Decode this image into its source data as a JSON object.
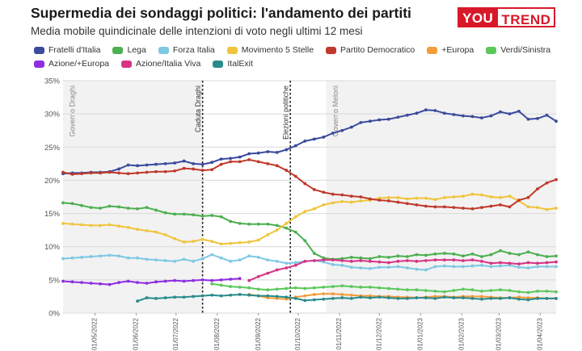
{
  "header": {
    "title": "Supermedia dei sondaggi politici: l'andamento dei partiti",
    "subtitle": "Media mobile quindicinale delle intenzioni di voto negli ultimi 12 mesi"
  },
  "logo": {
    "part1": "YOU",
    "part2": "TREND"
  },
  "chart_data": {
    "type": "line",
    "title": "Supermedia dei sondaggi politici: l'andamento dei partiti",
    "subtitle": "Media mobile quindicinale delle intenzioni di voto negli ultimi 12 mesi",
    "ylim": [
      0,
      35
    ],
    "y_ticks": [
      0,
      5,
      10,
      15,
      20,
      25,
      30,
      35
    ],
    "y_tick_labels": [
      "0%",
      "5%",
      "10%",
      "15%",
      "20%",
      "25%",
      "30%",
      "35%"
    ],
    "x_tick_labels": [
      "01/05/2022",
      "01/06/2022",
      "01/07/2022",
      "01/08/2022",
      "01/09/2022",
      "01/10/2022",
      "01/11/2022",
      "01/12/2022",
      "01/01/2023",
      "01/02/2023",
      "01/03/2023",
      "01/04/2023"
    ],
    "x": [
      "2022-04-07",
      "2022-04-14",
      "2022-04-21",
      "2022-04-28",
      "2022-05-05",
      "2022-05-12",
      "2022-05-19",
      "2022-05-26",
      "2022-06-02",
      "2022-06-09",
      "2022-06-16",
      "2022-06-23",
      "2022-06-30",
      "2022-07-07",
      "2022-07-14",
      "2022-07-21",
      "2022-07-28",
      "2022-08-04",
      "2022-08-11",
      "2022-08-18",
      "2022-08-25",
      "2022-09-01",
      "2022-09-08",
      "2022-09-15",
      "2022-09-22",
      "2022-09-29",
      "2022-10-06",
      "2022-10-13",
      "2022-10-20",
      "2022-10-27",
      "2022-11-03",
      "2022-11-10",
      "2022-11-17",
      "2022-11-24",
      "2022-12-01",
      "2022-12-08",
      "2022-12-15",
      "2022-12-22",
      "2022-12-29",
      "2023-01-05",
      "2023-01-12",
      "2023-01-19",
      "2023-01-26",
      "2023-02-02",
      "2023-02-09",
      "2023-02-16",
      "2023-02-23",
      "2023-03-02",
      "2023-03-09",
      "2023-03-16",
      "2023-03-23",
      "2023-03-30",
      "2023-04-06",
      "2023-04-13"
    ],
    "series": [
      {
        "name": "Fratelli d'Italia",
        "color": "#3a4a9c",
        "values": [
          21.0,
          21.1,
          21.1,
          21.2,
          21.2,
          21.3,
          21.7,
          22.3,
          22.2,
          22.3,
          22.4,
          22.5,
          22.6,
          22.9,
          22.5,
          22.4,
          22.7,
          23.2,
          23.3,
          23.5,
          24.0,
          24.1,
          24.3,
          24.2,
          24.6,
          25.2,
          25.9,
          26.2,
          26.5,
          27.1,
          27.5,
          28.0,
          28.7,
          28.9,
          29.1,
          29.2,
          29.5,
          29.8,
          30.1,
          30.6,
          30.5,
          30.1,
          29.9,
          29.7,
          29.6,
          29.4,
          29.7,
          30.3,
          30.0,
          30.4,
          29.2,
          29.3,
          29.8,
          28.9
        ]
      },
      {
        "name": "Lega",
        "color": "#4caf50",
        "values": [
          16.6,
          16.5,
          16.2,
          15.9,
          15.8,
          16.1,
          16.0,
          15.8,
          15.7,
          15.9,
          15.5,
          15.1,
          14.9,
          14.9,
          14.8,
          14.6,
          14.7,
          14.5,
          13.8,
          13.5,
          13.4,
          13.4,
          13.4,
          13.2,
          12.8,
          12.2,
          10.9,
          9.0,
          8.3,
          8.1,
          8.2,
          8.4,
          8.3,
          8.2,
          8.5,
          8.4,
          8.6,
          8.5,
          8.8,
          8.7,
          8.9,
          9.0,
          8.9,
          8.6,
          8.9,
          8.5,
          8.8,
          9.4,
          9.0,
          8.8,
          9.2,
          8.8,
          8.5,
          8.6
        ]
      },
      {
        "name": "Forza Italia",
        "color": "#7ec8e3",
        "values": [
          8.2,
          8.3,
          8.4,
          8.5,
          8.6,
          8.7,
          8.6,
          8.3,
          8.3,
          8.1,
          8.0,
          7.9,
          7.8,
          8.1,
          7.8,
          8.2,
          8.8,
          8.3,
          7.8,
          8.0,
          8.6,
          8.4,
          8.0,
          7.8,
          7.5,
          7.6,
          7.8,
          7.9,
          7.7,
          7.3,
          7.2,
          6.9,
          6.8,
          6.7,
          6.9,
          6.9,
          7.0,
          6.8,
          6.6,
          6.5,
          7.0,
          7.1,
          7.0,
          7.0,
          7.1,
          7.2,
          7.0,
          7.1,
          7.2,
          6.9,
          6.8,
          7.0,
          7.0,
          7.0
        ]
      },
      {
        "name": "Movimento 5 Stelle",
        "color": "#f0c43c",
        "values": [
          13.5,
          13.4,
          13.3,
          13.2,
          13.2,
          13.3,
          13.1,
          12.9,
          12.6,
          12.4,
          12.2,
          11.8,
          11.2,
          10.7,
          10.8,
          11.1,
          10.8,
          10.4,
          10.5,
          10.6,
          10.7,
          11.0,
          11.8,
          12.5,
          13.5,
          14.5,
          15.3,
          15.7,
          16.3,
          16.6,
          16.8,
          16.7,
          16.9,
          17.0,
          17.3,
          17.4,
          17.4,
          17.2,
          17.3,
          17.3,
          17.1,
          17.4,
          17.5,
          17.6,
          17.9,
          17.8,
          17.5,
          17.4,
          17.6,
          16.9,
          16.0,
          15.9,
          15.6,
          15.8
        ]
      },
      {
        "name": "Partito Democratico",
        "color": "#c0392b",
        "values": [
          21.2,
          20.9,
          21.0,
          21.1,
          21.1,
          21.2,
          21.1,
          21.0,
          21.1,
          21.2,
          21.3,
          21.3,
          21.4,
          21.8,
          21.7,
          21.5,
          21.6,
          22.4,
          22.8,
          22.8,
          23.1,
          22.8,
          22.5,
          22.2,
          21.5,
          20.6,
          19.5,
          18.6,
          18.2,
          17.9,
          17.8,
          17.6,
          17.5,
          17.2,
          17.0,
          16.9,
          16.7,
          16.5,
          16.3,
          16.1,
          16.0,
          16.0,
          15.9,
          15.8,
          15.7,
          15.9,
          16.1,
          16.3,
          16.0,
          17.0,
          17.4,
          18.7,
          19.6,
          20.1
        ]
      },
      {
        "name": "+Europa",
        "color": "#f39c3c",
        "values": [
          null,
          null,
          null,
          null,
          null,
          null,
          null,
          null,
          null,
          null,
          null,
          null,
          null,
          null,
          null,
          null,
          null,
          null,
          null,
          null,
          2.8,
          2.6,
          2.3,
          2.2,
          2.1,
          2.4,
          2.6,
          2.8,
          2.9,
          2.9,
          2.8,
          2.7,
          2.6,
          2.6,
          2.5,
          2.5,
          2.4,
          2.4,
          2.3,
          2.4,
          2.5,
          2.5,
          2.4,
          2.5,
          2.5,
          2.5,
          2.4,
          2.3,
          2.3,
          2.4,
          2.3,
          2.3,
          2.2,
          2.2
        ]
      },
      {
        "name": "Verdi/Sinistra",
        "color": "#5cc85c",
        "values": [
          null,
          null,
          null,
          null,
          null,
          null,
          null,
          null,
          null,
          null,
          null,
          null,
          null,
          null,
          null,
          null,
          4.4,
          4.2,
          4.0,
          3.9,
          3.8,
          3.6,
          3.5,
          3.6,
          3.7,
          3.8,
          3.7,
          3.8,
          3.9,
          4.0,
          4.1,
          4.0,
          3.9,
          3.9,
          3.8,
          3.7,
          3.6,
          3.5,
          3.5,
          3.4,
          3.3,
          3.2,
          3.4,
          3.6,
          3.5,
          3.3,
          3.4,
          3.5,
          3.4,
          3.2,
          3.1,
          3.3,
          3.3,
          3.2
        ]
      },
      {
        "name": "Azione/+Europa",
        "color": "#8e2de2",
        "values": [
          4.8,
          4.7,
          4.6,
          4.5,
          4.4,
          4.3,
          4.6,
          4.8,
          4.6,
          4.5,
          4.7,
          4.8,
          4.9,
          4.8,
          4.9,
          5.0,
          4.9,
          5.0,
          5.1,
          5.2,
          null,
          null,
          null,
          null,
          null,
          null,
          null,
          null,
          null,
          null,
          null,
          null,
          null,
          null,
          null,
          null,
          null,
          null,
          null,
          null,
          null,
          null,
          null,
          null,
          null,
          null,
          null,
          null,
          null,
          null,
          null,
          null,
          null,
          null
        ]
      },
      {
        "name": "Azione/Italia Viva",
        "color": "#d63384",
        "values": [
          null,
          null,
          null,
          null,
          null,
          null,
          null,
          null,
          null,
          null,
          null,
          null,
          null,
          null,
          null,
          null,
          null,
          null,
          null,
          null,
          4.9,
          5.5,
          6.0,
          6.5,
          6.8,
          7.2,
          7.8,
          7.9,
          8.0,
          8.0,
          7.9,
          7.8,
          7.9,
          7.8,
          7.7,
          7.6,
          7.8,
          7.9,
          7.8,
          7.9,
          8.0,
          8.0,
          8.0,
          7.9,
          8.0,
          7.8,
          7.5,
          7.6,
          7.5,
          7.4,
          7.6,
          7.5,
          7.6,
          7.7
        ]
      },
      {
        "name": "ItalExit",
        "color": "#2a8b8b",
        "values": [
          null,
          null,
          null,
          null,
          null,
          null,
          null,
          null,
          1.8,
          2.3,
          2.2,
          2.3,
          2.4,
          2.4,
          2.5,
          2.6,
          2.7,
          2.6,
          2.7,
          2.8,
          2.7,
          2.6,
          2.6,
          2.5,
          2.4,
          2.2,
          1.9,
          2.0,
          2.1,
          2.2,
          2.3,
          2.2,
          2.4,
          2.3,
          2.4,
          2.3,
          2.2,
          2.2,
          2.3,
          2.3,
          2.2,
          2.4,
          2.3,
          2.3,
          2.2,
          2.1,
          2.2,
          2.2,
          2.3,
          2.1,
          2.0,
          2.2,
          2.2,
          2.2
        ]
      }
    ],
    "events": [
      {
        "label": "Caduta Draghi",
        "date": "2022-07-21"
      },
      {
        "label": "Elezioni politiche",
        "date": "2022-09-25"
      }
    ],
    "shaded_regions": [
      {
        "label": "Governo Draghi",
        "start": "2022-04-07",
        "end": "2022-07-21"
      },
      {
        "label": "Governo Meloni",
        "start": "2022-10-22",
        "end": "2023-04-13"
      }
    ],
    "grid": true,
    "legend_position": "top"
  }
}
